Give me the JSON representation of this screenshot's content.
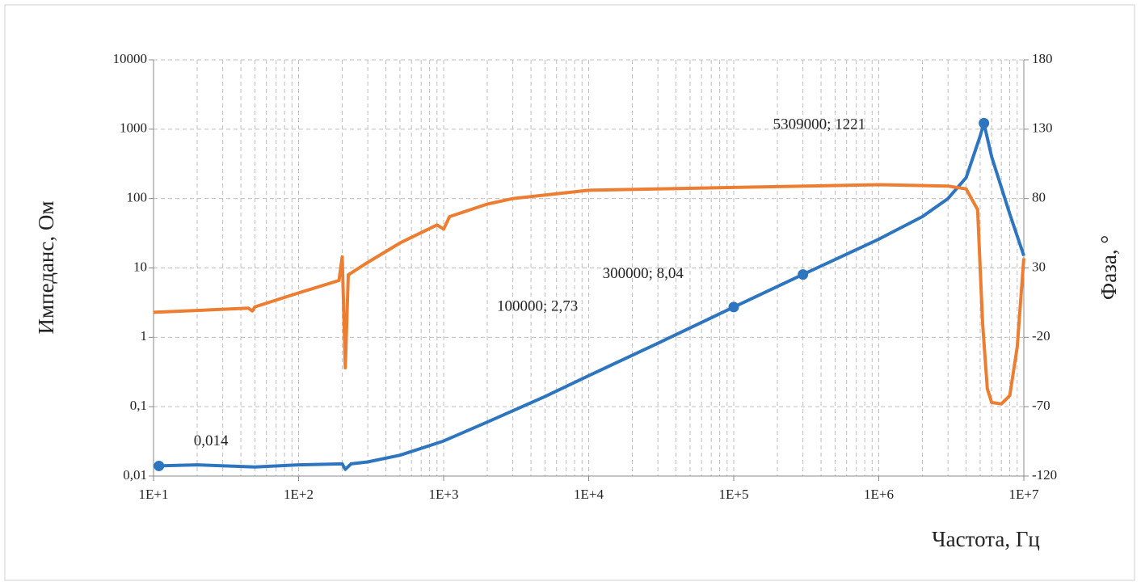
{
  "chart_data": {
    "type": "line",
    "xlabel": "Частота, Гц",
    "ylabel": "Импеданс, Ом",
    "y2label": "Фаза, °",
    "xlog": true,
    "ylog": true,
    "grid": true,
    "minor_grid": true,
    "xlim": [
      10,
      10000000
    ],
    "ylim": [
      0.01,
      10000
    ],
    "y2lim": [
      -120,
      180
    ],
    "xticks": [
      {
        "value": 10,
        "label": "1E+1"
      },
      {
        "value": 100,
        "label": "1E+2"
      },
      {
        "value": 1000,
        "label": "1E+3"
      },
      {
        "value": 10000,
        "label": "1E+4"
      },
      {
        "value": 100000,
        "label": "1E+5"
      },
      {
        "value": 1000000,
        "label": "1E+6"
      },
      {
        "value": 10000000,
        "label": "1E+7"
      }
    ],
    "yticks": [
      {
        "value": 0.01,
        "label": "0,01"
      },
      {
        "value": 0.1,
        "label": "0,1"
      },
      1,
      10,
      100,
      1000,
      10000
    ],
    "y2ticks": [
      -120,
      -70,
      -20,
      30,
      80,
      130,
      180
    ],
    "series": [
      {
        "color": "#2e75c0",
        "axis": "y",
        "x": [
          10,
          20,
          50,
          100,
          200,
          210,
          230,
          300,
          500,
          1000,
          2000,
          5000,
          10000,
          30000,
          100000,
          300000,
          1000000,
          2000000,
          3000000,
          4000000,
          5000000,
          5309000,
          6000000,
          8000000,
          10000000
        ],
        "values": [
          0.014,
          0.0145,
          0.0135,
          0.0145,
          0.015,
          0.0125,
          0.015,
          0.016,
          0.02,
          0.032,
          0.06,
          0.14,
          0.28,
          0.82,
          2.73,
          8.04,
          26,
          55,
          100,
          200,
          800,
          1221,
          400,
          60,
          15
        ]
      },
      {
        "color": "#ed7d31",
        "axis": "y2",
        "x": [
          10,
          45,
          48,
          50,
          100,
          190,
          200,
          210,
          220,
          300,
          500,
          900,
          1000,
          1100,
          2000,
          3000,
          10000,
          100000,
          1000000,
          3000000,
          4000000,
          4800000,
          5200000,
          5600000,
          6000000,
          7000000,
          8000000,
          9000000,
          10000000
        ],
        "values": [
          -2,
          1,
          -1,
          2,
          12,
          21,
          38,
          -42,
          25,
          34,
          48,
          61,
          58,
          67,
          76,
          80,
          86,
          88,
          90,
          89,
          87,
          72,
          -10,
          -57,
          -67,
          -68,
          -62,
          -27,
          37
        ]
      }
    ],
    "annotations": [
      {
        "x": 10.9,
        "y": 0.014,
        "label": "0,014"
      },
      {
        "x": 100000,
        "y": 2.73,
        "label": "100000; 2,73"
      },
      {
        "x": 300000,
        "y": 8.04,
        "label": "300000; 8,04"
      },
      {
        "x": 5309000,
        "y": 1221,
        "label": "5309000; 1221"
      }
    ]
  }
}
